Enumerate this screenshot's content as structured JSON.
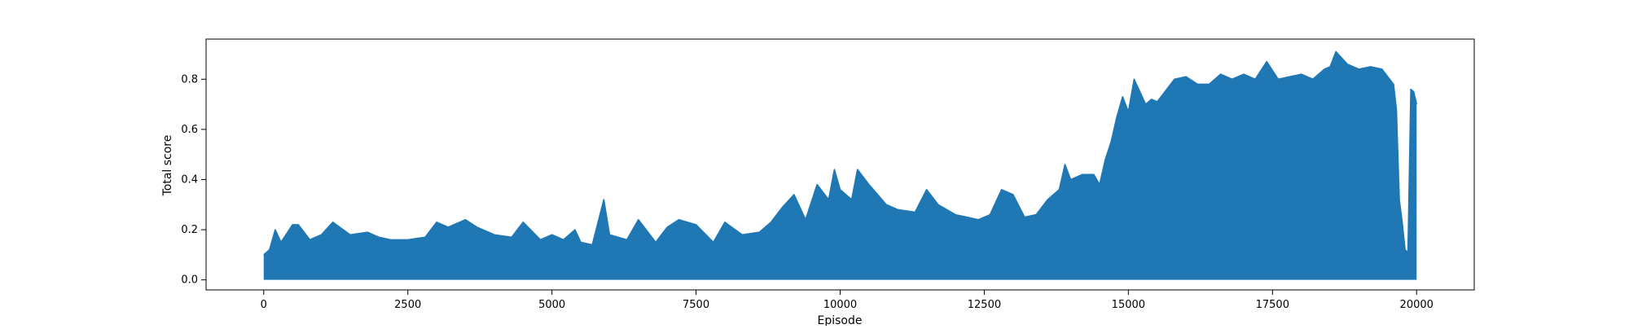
{
  "chart_data": {
    "type": "line",
    "title": "",
    "xlabel": "Episode",
    "ylabel": "Total score",
    "xlim": [
      -1000,
      21000
    ],
    "ylim": [
      -0.04,
      0.96
    ],
    "xticks": [
      0,
      2500,
      5000,
      7500,
      10000,
      12500,
      15000,
      17500,
      20000
    ],
    "xtick_labels": [
      "0",
      "2500",
      "5000",
      "7500",
      "10000",
      "12500",
      "15000",
      "17500",
      "20000"
    ],
    "yticks": [
      0.0,
      0.2,
      0.4,
      0.6,
      0.8
    ],
    "ytick_labels": [
      "0.0",
      "0.2",
      "0.4",
      "0.6",
      "0.8"
    ],
    "grid": false,
    "legend": "none",
    "series": [
      {
        "color": "#1f77b4",
        "x": [
          0,
          100,
          200,
          300,
          500,
          600,
          800,
          1000,
          1200,
          1500,
          1800,
          2000,
          2200,
          2500,
          2800,
          3000,
          3200,
          3500,
          3700,
          4000,
          4300,
          4500,
          4800,
          5000,
          5200,
          5400,
          5500,
          5700,
          5900,
          6000,
          6300,
          6500,
          6800,
          7000,
          7200,
          7500,
          7800,
          8000,
          8300,
          8600,
          8800,
          9000,
          9200,
          9400,
          9600,
          9800,
          9900,
          10000,
          10200,
          10300,
          10500,
          10800,
          11000,
          11300,
          11500,
          11700,
          12000,
          12200,
          12400,
          12600,
          12800,
          13000,
          13200,
          13400,
          13600,
          13800,
          13900,
          14000,
          14200,
          14400,
          14500,
          14600,
          14700,
          14800,
          14900,
          15000,
          15100,
          15200,
          15300,
          15400,
          15500,
          15600,
          15800,
          16000,
          16200,
          16400,
          16600,
          16800,
          17000,
          17200,
          17400,
          17600,
          17800,
          18000,
          18200,
          18400,
          18500,
          18600,
          18800,
          19000,
          19200,
          19400,
          19500,
          19600,
          19650,
          19700,
          19750,
          19800,
          19850,
          19900,
          19950,
          20000
        ],
        "y": [
          0.1,
          0.12,
          0.2,
          0.15,
          0.22,
          0.22,
          0.16,
          0.18,
          0.23,
          0.18,
          0.19,
          0.17,
          0.16,
          0.16,
          0.17,
          0.23,
          0.21,
          0.24,
          0.21,
          0.18,
          0.17,
          0.23,
          0.16,
          0.18,
          0.16,
          0.2,
          0.15,
          0.14,
          0.32,
          0.18,
          0.16,
          0.24,
          0.15,
          0.21,
          0.24,
          0.22,
          0.15,
          0.23,
          0.18,
          0.19,
          0.23,
          0.29,
          0.34,
          0.24,
          0.38,
          0.32,
          0.44,
          0.36,
          0.32,
          0.44,
          0.38,
          0.3,
          0.28,
          0.27,
          0.36,
          0.3,
          0.26,
          0.25,
          0.24,
          0.26,
          0.36,
          0.34,
          0.25,
          0.26,
          0.32,
          0.36,
          0.46,
          0.4,
          0.42,
          0.42,
          0.38,
          0.48,
          0.55,
          0.65,
          0.73,
          0.67,
          0.8,
          0.75,
          0.7,
          0.72,
          0.71,
          0.74,
          0.8,
          0.81,
          0.78,
          0.78,
          0.82,
          0.8,
          0.82,
          0.8,
          0.87,
          0.8,
          0.81,
          0.82,
          0.8,
          0.84,
          0.85,
          0.91,
          0.86,
          0.84,
          0.85,
          0.84,
          0.81,
          0.78,
          0.68,
          0.32,
          0.23,
          0.12,
          0.11,
          0.76,
          0.75,
          0.7
        ],
        "baseline": [
          0.0,
          0.0,
          0.0,
          0.0,
          0.0,
          0.0,
          0.0,
          0.0,
          0.0,
          0.0,
          0.0,
          0.0,
          0.0,
          0.0,
          0.0,
          0.0,
          0.0,
          0.0,
          0.0,
          0.0,
          0.0,
          0.0,
          0.0,
          0.0,
          0.0,
          0.0,
          0.0,
          0.0,
          0.0,
          0.0,
          0.0,
          0.0,
          0.0,
          0.0,
          0.0,
          0.0,
          0.0,
          0.0,
          0.0,
          0.0,
          0.0,
          0.0,
          0.0,
          0.0,
          0.0,
          0.0,
          0.0,
          0.0,
          0.0,
          0.0,
          0.0,
          0.0,
          0.0,
          0.0,
          0.0,
          0.0,
          0.0,
          0.0,
          0.0,
          0.0,
          0.0,
          0.0,
          0.0,
          0.0,
          0.0,
          0.0,
          0.0,
          0.0,
          0.0,
          0.0,
          0.0,
          0.0,
          0.0,
          0.0,
          0.0,
          0.0,
          0.0,
          0.0,
          0.0,
          0.0,
          0.0,
          0.0,
          0.0,
          0.0,
          0.0,
          0.0,
          0.0,
          0.0,
          0.0,
          0.0,
          0.0,
          0.0,
          0.0,
          0.0,
          0.0,
          0.0,
          0.0,
          0.0,
          0.0,
          0.0,
          0.0,
          0.0,
          0.0,
          0.0,
          0.0,
          0.0,
          0.0,
          0.0,
          0.0,
          0.0,
          0.0,
          0.0
        ]
      }
    ]
  }
}
